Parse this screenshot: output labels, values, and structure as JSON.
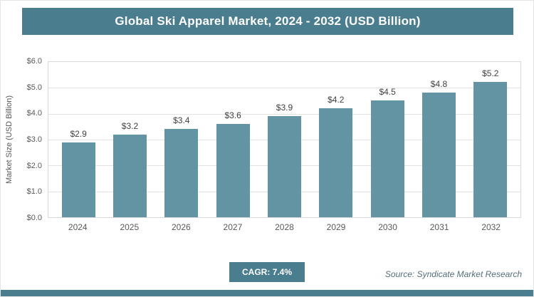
{
  "title": "Global Ski Apparel Market, 2024 - 2032 (USD Billion)",
  "colors": {
    "accent": "#4a7d8e",
    "bar": "#6394a4",
    "grid": "#e2e2e2",
    "tick_text": "#595959",
    "value_text": "#404040"
  },
  "chart_data": {
    "type": "bar",
    "title": "Global Ski Apparel Market, 2024 - 2032 (USD Billion)",
    "categories": [
      "2024",
      "2025",
      "2026",
      "2027",
      "2028",
      "2029",
      "2030",
      "2031",
      "2032"
    ],
    "values": [
      2.9,
      3.2,
      3.4,
      3.6,
      3.9,
      4.2,
      4.5,
      4.8,
      5.2
    ],
    "bar_labels": [
      "$2.9",
      "$3.2",
      "$3.4",
      "$3.6",
      "$3.9",
      "$4.2",
      "$4.5",
      "$4.8",
      "$5.2"
    ],
    "xlabel": "",
    "ylabel": "Market Size (USD Billion)",
    "ylim": [
      0,
      6
    ],
    "ytick_labels": [
      "$6.0",
      "$5.0",
      "$4.0",
      "$3.0",
      "$2.0",
      "$1.0",
      "$0.0"
    ],
    "grid": true,
    "legend": "none"
  },
  "footer": {
    "cagr_label": "CAGR: 7.4%",
    "source": "Source: Syndicate Market Research"
  }
}
